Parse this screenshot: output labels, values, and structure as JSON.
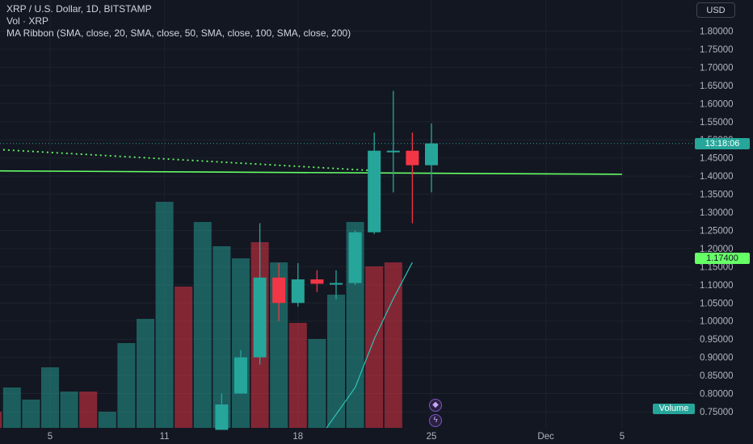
{
  "legend": {
    "symbol_line": "XRP / U.S. Dollar, 1D, BITSTAMP",
    "vol_line": "Vol · XRP",
    "ma_line": "MA Ribbon (SMA, close, 20, SMA, close, 50, SMA, close, 100, SMA, close, 200)"
  },
  "currency_button": "USD",
  "current_price_label": "13:18:06",
  "ma_price_label": "1.17400",
  "volume_label": "Volume",
  "colors": {
    "up": "#26a69a",
    "down": "#f23645",
    "ma": "#66ff66",
    "bg": "#131722",
    "grid": "#1e222d",
    "text": "#b2b5be"
  },
  "chart_data": {
    "type": "candlestick",
    "title": "XRP / U.S. Dollar, 1D, BITSTAMP",
    "ylim": [
      0.72,
      1.84
    ],
    "y_ticks": [
      1.8,
      1.75,
      1.7,
      1.65,
      1.6,
      1.55,
      1.5,
      1.45,
      1.4,
      1.35,
      1.3,
      1.25,
      1.2,
      1.15,
      1.1,
      1.05,
      1.0,
      0.95,
      0.9,
      0.85,
      0.8,
      0.75
    ],
    "x_ticks": [
      "5",
      "11",
      "18",
      "25",
      "Dec",
      "5"
    ],
    "x_tick_days": [
      5,
      11,
      18,
      25,
      31,
      35
    ],
    "candles": [
      {
        "day": 14,
        "open": 0.7,
        "high": 0.8,
        "low": 0.7,
        "close": 0.77
      },
      {
        "day": 15,
        "open": 0.8,
        "high": 0.92,
        "low": 0.8,
        "close": 0.9
      },
      {
        "day": 16,
        "open": 0.9,
        "high": 1.27,
        "low": 0.88,
        "close": 1.12
      },
      {
        "day": 17,
        "open": 1.12,
        "high": 1.16,
        "low": 1.0,
        "close": 1.05
      },
      {
        "day": 18,
        "open": 1.05,
        "high": 1.16,
        "low": 1.04,
        "close": 1.115
      },
      {
        "day": 19,
        "open": 1.115,
        "high": 1.14,
        "low": 1.08,
        "close": 1.103
      },
      {
        "day": 20,
        "open": 1.103,
        "high": 1.14,
        "low": 1.06,
        "close": 1.105
      },
      {
        "day": 21,
        "open": 1.105,
        "high": 1.25,
        "low": 1.1,
        "close": 1.245
      },
      {
        "day": 22,
        "open": 1.245,
        "high": 1.52,
        "low": 1.24,
        "close": 1.47
      },
      {
        "day": 23,
        "open": 1.47,
        "high": 1.635,
        "low": 1.355,
        "close": 1.47
      },
      {
        "day": 24,
        "open": 1.47,
        "high": 1.52,
        "low": 1.27,
        "close": 1.43
      },
      {
        "day": 25,
        "open": 1.43,
        "high": 1.545,
        "low": 1.355,
        "close": 1.49
      }
    ],
    "volume": [
      {
        "day": 2,
        "value": 0.02,
        "up": false
      },
      {
        "day": 3,
        "value": 0.05,
        "up": true
      },
      {
        "day": 4,
        "value": 0.035,
        "up": true
      },
      {
        "day": 5,
        "value": 0.075,
        "up": true
      },
      {
        "day": 6,
        "value": 0.045,
        "up": true
      },
      {
        "day": 7,
        "value": 0.045,
        "up": false
      },
      {
        "day": 8,
        "value": 0.02,
        "up": true
      },
      {
        "day": 9,
        "value": 0.105,
        "up": true
      },
      {
        "day": 10,
        "value": 0.135,
        "up": true
      },
      {
        "day": 11,
        "value": 0.28,
        "up": true
      },
      {
        "day": 12,
        "value": 0.175,
        "up": false
      },
      {
        "day": 13,
        "value": 0.255,
        "up": true
      },
      {
        "day": 14,
        "value": 0.225,
        "up": true
      },
      {
        "day": 15,
        "value": 0.21,
        "up": true
      },
      {
        "day": 16,
        "value": 0.23,
        "up": false
      },
      {
        "day": 17,
        "value": 0.205,
        "up": true
      },
      {
        "day": 18,
        "value": 0.13,
        "up": false
      },
      {
        "day": 19,
        "value": 0.11,
        "up": true
      },
      {
        "day": 20,
        "value": 0.165,
        "up": true
      },
      {
        "day": 21,
        "value": 0.255,
        "up": true
      },
      {
        "day": 22,
        "value": 0.2,
        "up": false
      },
      {
        "day": 23,
        "value": 0.205,
        "up": false
      }
    ],
    "volume_ma": [
      [
        19.5,
        0.0
      ],
      [
        21,
        0.05
      ],
      [
        22,
        0.11
      ],
      [
        23,
        0.16
      ],
      [
        24,
        0.205
      ]
    ],
    "ma_lines": [
      {
        "name": "SMA 200",
        "style": "solid",
        "points": [
          [
            0,
            1.415
          ],
          [
            35,
            1.405
          ]
        ]
      },
      {
        "name": "SMA 100",
        "style": "dotted",
        "points": [
          [
            0,
            1.48
          ],
          [
            22,
            1.415
          ]
        ]
      }
    ],
    "current_price": 1.49,
    "ma_price": 1.174
  }
}
